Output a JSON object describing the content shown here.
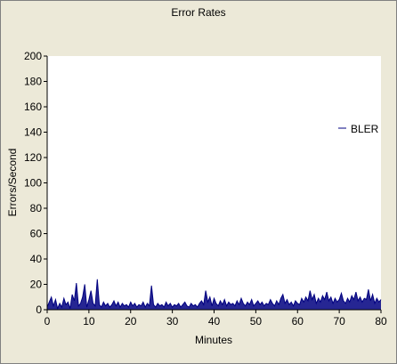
{
  "window": {
    "background": "#ece9d8",
    "plot_background": "#ffffff",
    "series_color": "#000080"
  },
  "chart_data": {
    "type": "line",
    "title": "Error Rates",
    "xlabel": "Minutes",
    "ylabel": "Errors/Second",
    "xlim": [
      0,
      80
    ],
    "ylim": [
      0,
      200
    ],
    "x_ticks": [
      "0",
      "10",
      "20",
      "30",
      "40",
      "50",
      "60",
      "70",
      "80"
    ],
    "y_ticks": [
      "0",
      "20",
      "40",
      "60",
      "80",
      "100",
      "120",
      "140",
      "160",
      "180",
      "200"
    ],
    "grid": false,
    "legend_position": "right",
    "series": [
      {
        "name": "BLER",
        "color": "#000080",
        "x": [
          0,
          0.5,
          1,
          1.5,
          2,
          2.5,
          3,
          3.5,
          4,
          4.5,
          5,
          5.5,
          6,
          6.5,
          7,
          7.5,
          8,
          8.5,
          9,
          9.5,
          10,
          10.5,
          11,
          11.5,
          12,
          12.5,
          13,
          13.5,
          14,
          14.5,
          15,
          15.5,
          16,
          16.5,
          17,
          17.5,
          18,
          18.5,
          19,
          19.5,
          20,
          20.5,
          21,
          21.5,
          22,
          22.5,
          23,
          23.5,
          24,
          24.5,
          25,
          25.5,
          26,
          26.5,
          27,
          27.5,
          28,
          28.5,
          29,
          29.5,
          30,
          30.5,
          31,
          31.5,
          32,
          32.5,
          33,
          33.5,
          34,
          34.5,
          35,
          35.5,
          36,
          36.5,
          37,
          37.5,
          38,
          38.5,
          39,
          39.5,
          40,
          40.5,
          41,
          41.5,
          42,
          42.5,
          43,
          43.5,
          44,
          44.5,
          45,
          45.5,
          46,
          46.5,
          47,
          47.5,
          48,
          48.5,
          49,
          49.5,
          50,
          50.5,
          51,
          51.5,
          52,
          52.5,
          53,
          53.5,
          54,
          54.5,
          55,
          55.5,
          56,
          56.5,
          57,
          57.5,
          58,
          58.5,
          59,
          59.5,
          60,
          60.5,
          61,
          61.5,
          62,
          62.5,
          63,
          63.5,
          64,
          64.5,
          65,
          65.5,
          66,
          66.5,
          67,
          67.5,
          68,
          68.5,
          69,
          69.5,
          70,
          70.5,
          71,
          71.5,
          72,
          72.5,
          73,
          73.5,
          74,
          74.5,
          75,
          75.5,
          76,
          76.5,
          77,
          77.5,
          78,
          78.5,
          79,
          79.5,
          80
        ],
        "y": [
          2,
          6,
          10,
          3,
          8,
          1,
          5,
          2,
          9,
          4,
          6,
          1,
          12,
          7,
          21,
          3,
          5,
          10,
          20,
          2,
          8,
          15,
          5,
          3,
          24,
          4,
          2,
          6,
          3,
          5,
          2,
          4,
          7,
          3,
          6,
          2,
          5,
          3,
          4,
          2,
          6,
          3,
          5,
          2,
          4,
          3,
          6,
          2,
          5,
          3,
          19,
          4,
          2,
          5,
          3,
          4,
          2,
          6,
          3,
          5,
          2,
          4,
          3,
          5,
          2,
          4,
          6,
          3,
          2,
          5,
          3,
          4,
          2,
          5,
          7,
          4,
          15,
          6,
          10,
          3,
          9,
          5,
          3,
          7,
          4,
          8,
          3,
          6,
          4,
          5,
          3,
          7,
          4,
          9,
          5,
          3,
          6,
          4,
          8,
          3,
          5,
          7,
          4,
          6,
          3,
          5,
          4,
          8,
          5,
          3,
          7,
          4,
          9,
          12,
          5,
          8,
          4,
          6,
          3,
          7,
          5,
          4,
          9,
          6,
          10,
          7,
          15,
          8,
          12,
          5,
          9,
          6,
          11,
          8,
          14,
          7,
          10,
          5,
          9,
          6,
          8,
          13,
          7,
          5,
          9,
          6,
          11,
          8,
          14,
          7,
          10,
          6,
          9,
          8,
          16,
          7,
          12,
          5,
          9,
          6,
          8
        ]
      }
    ]
  }
}
